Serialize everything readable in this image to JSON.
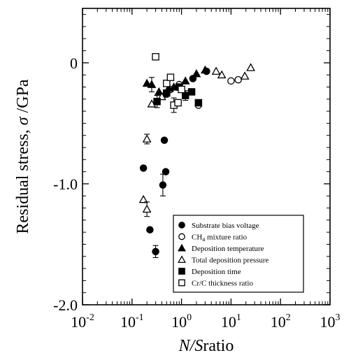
{
  "chart_data": {
    "type": "scatter",
    "title": "",
    "xlabel_italic": "N/S",
    "xlabel_rest": "ratio",
    "ylabel_prefix": "Residual stress, ",
    "ylabel_symbol": "σ",
    "ylabel_unit": " /GPa",
    "x_scale": "log",
    "xlim": [
      0.01,
      1000
    ],
    "ylim": [
      -2.0,
      0.45
    ],
    "x_ticks": [
      {
        "value": 0.01,
        "base": "10",
        "exp": "-2"
      },
      {
        "value": 0.1,
        "base": "10",
        "exp": "-1"
      },
      {
        "value": 1,
        "base": "10",
        "exp": "0"
      },
      {
        "value": 10,
        "base": "10",
        "exp": "1"
      },
      {
        "value": 100,
        "base": "10",
        "exp": "2"
      },
      {
        "value": 1000,
        "base": "10",
        "exp": "3"
      }
    ],
    "y_ticks": [
      {
        "value": 0,
        "label": "0"
      },
      {
        "value": -1.0,
        "label": "-1.0"
      },
      {
        "value": -2.0,
        "label": "-2.0"
      }
    ],
    "grid": false,
    "legend_position": "bottom-right",
    "series": [
      {
        "name": "Substrate bias voltage",
        "marker": "filled-circle",
        "points": [
          {
            "x": 0.45,
            "y": -0.64
          },
          {
            "x": 0.48,
            "y": -0.9
          },
          {
            "x": 0.17,
            "y": -0.87
          },
          {
            "x": 0.42,
            "y": -1.01,
            "err": 0.09
          },
          {
            "x": 0.23,
            "y": -1.38
          },
          {
            "x": 0.3,
            "y": -1.56,
            "err": 0.05
          },
          {
            "x": 1.7,
            "y": -0.13
          },
          {
            "x": 3.2,
            "y": -0.07
          }
        ]
      },
      {
        "name": "CH4 mixture ratio",
        "name_main": "CH",
        "name_sub": "4",
        "name_tail": " mixture ratio",
        "marker": "open-circle",
        "points": [
          {
            "x": 0.6,
            "y": -0.22
          },
          {
            "x": 0.9,
            "y": -0.18
          },
          {
            "x": 2.2,
            "y": -0.35
          },
          {
            "x": 10,
            "y": -0.15
          },
          {
            "x": 14,
            "y": -0.14
          }
        ]
      },
      {
        "name": "Deposition temperature",
        "marker": "filled-triangle",
        "points": [
          {
            "x": 0.2,
            "y": -0.17
          },
          {
            "x": 0.25,
            "y": -0.18,
            "err": 0.06
          },
          {
            "x": 0.35,
            "y": -0.24
          },
          {
            "x": 0.45,
            "y": -0.26
          },
          {
            "x": 0.55,
            "y": -0.21
          },
          {
            "x": 0.7,
            "y": -0.2
          },
          {
            "x": 1.2,
            "y": -0.15
          },
          {
            "x": 2.0,
            "y": -0.09
          },
          {
            "x": 3.0,
            "y": -0.06
          }
        ]
      },
      {
        "name": "Total deposition pressure",
        "marker": "open-triangle",
        "points": [
          {
            "x": 0.2,
            "y": -0.63,
            "err": 0.04
          },
          {
            "x": 0.17,
            "y": -1.13
          },
          {
            "x": 0.2,
            "y": -1.21,
            "err": 0.06
          },
          {
            "x": 0.25,
            "y": -0.34
          },
          {
            "x": 0.4,
            "y": -0.28
          },
          {
            "x": 5.0,
            "y": -0.07
          },
          {
            "x": 6.5,
            "y": -0.1
          },
          {
            "x": 19,
            "y": -0.11
          },
          {
            "x": 25,
            "y": -0.04
          }
        ]
      },
      {
        "name": "Deposition time",
        "marker": "filled-square",
        "points": [
          {
            "x": 0.32,
            "y": -0.32,
            "err": 0.05
          },
          {
            "x": 0.5,
            "y": -0.25
          },
          {
            "x": 0.9,
            "y": -0.2
          },
          {
            "x": 1.2,
            "y": -0.27,
            "err": 0.04
          },
          {
            "x": 1.6,
            "y": -0.24
          },
          {
            "x": 2.2,
            "y": -0.33
          }
        ]
      },
      {
        "name": "Cr/C thickness ratio",
        "marker": "open-square",
        "points": [
          {
            "x": 0.3,
            "y": 0.05
          },
          {
            "x": 0.5,
            "y": -0.17
          },
          {
            "x": 0.6,
            "y": -0.12
          },
          {
            "x": 0.7,
            "y": -0.35,
            "err": 0.06
          },
          {
            "x": 0.85,
            "y": -0.33
          },
          {
            "x": 1.0,
            "y": -0.22
          }
        ]
      }
    ]
  }
}
